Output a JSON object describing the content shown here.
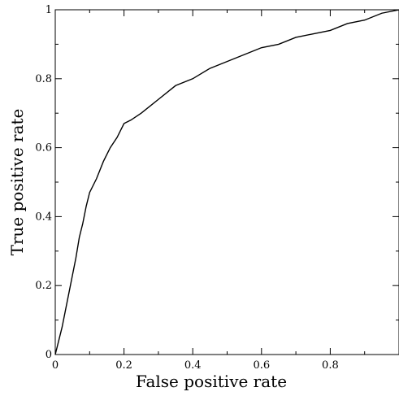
{
  "chart_data": {
    "type": "line",
    "title": "",
    "xlabel": "False positive rate",
    "ylabel": "True positive rate",
    "xlim": [
      0,
      1
    ],
    "ylim": [
      0,
      1
    ],
    "x_ticks": [
      "0",
      "0.2",
      "0.4",
      "0.6",
      "0.8"
    ],
    "y_ticks": [
      "0",
      "0.2",
      "0.4",
      "0.6",
      "0.8",
      "1"
    ],
    "grid": false,
    "legend": "none",
    "line_color": "#000000",
    "series": [
      {
        "x": [
          0,
          0.01,
          0.02,
          0.03,
          0.04,
          0.05,
          0.06,
          0.07,
          0.08,
          0.09,
          0.1,
          0.12,
          0.14,
          0.16,
          0.18,
          0.2,
          0.22,
          0.25,
          0.3,
          0.35,
          0.4,
          0.45,
          0.5,
          0.55,
          0.6,
          0.65,
          0.7,
          0.75,
          0.8,
          0.85,
          0.9,
          0.95,
          1.0
        ],
        "y": [
          0,
          0.04,
          0.08,
          0.13,
          0.18,
          0.23,
          0.28,
          0.34,
          0.38,
          0.43,
          0.47,
          0.51,
          0.56,
          0.6,
          0.63,
          0.67,
          0.68,
          0.7,
          0.74,
          0.78,
          0.8,
          0.83,
          0.85,
          0.87,
          0.89,
          0.9,
          0.92,
          0.93,
          0.94,
          0.96,
          0.97,
          0.99,
          1.0
        ]
      }
    ]
  }
}
